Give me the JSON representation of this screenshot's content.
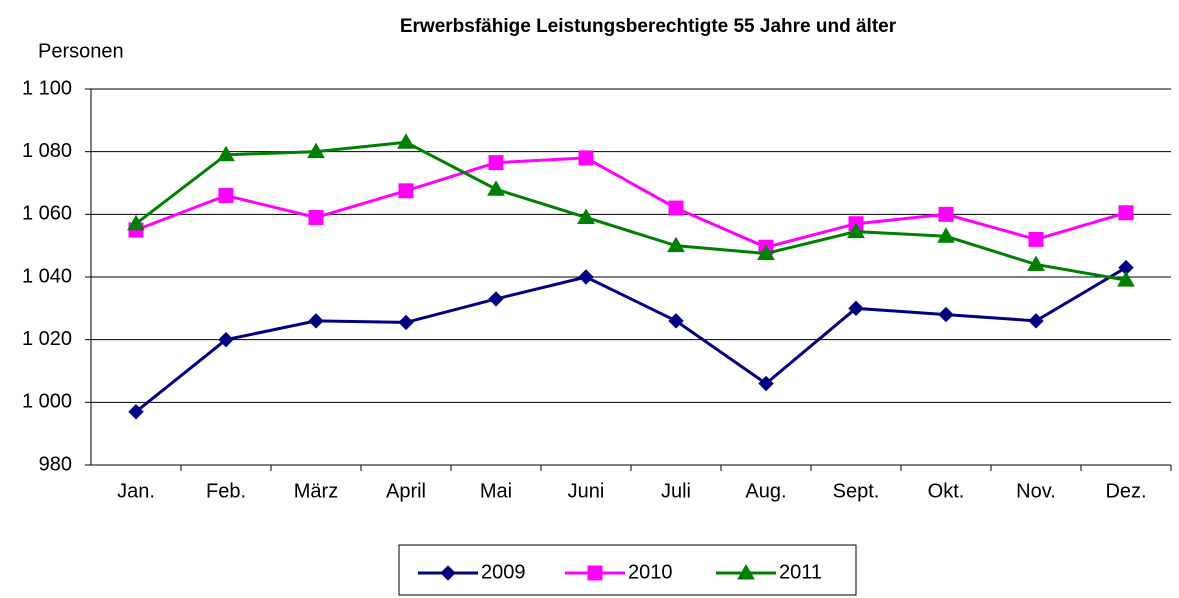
{
  "chart_data": {
    "type": "line",
    "title": "Erwerbsfähige Leistungsberechtigte 55 Jahre und älter",
    "y_label": "Personen",
    "categories": [
      "Jan.",
      "Feb.",
      "März",
      "April",
      "Mai",
      "Juni",
      "Juli",
      "Aug.",
      "Sept.",
      "Okt.",
      "Nov.",
      "Dez."
    ],
    "series": [
      {
        "name": "2009",
        "color": "#000080",
        "marker": "diamond",
        "values": [
          997,
          1020,
          1026,
          1025.5,
          1033,
          1040,
          1026,
          1006,
          1030,
          1028,
          1026,
          1043
        ]
      },
      {
        "name": "2010",
        "color": "#ff00ff",
        "marker": "square",
        "values": [
          1055,
          1066,
          1059,
          1067.5,
          1076.5,
          1078,
          1062,
          1049.5,
          1057,
          1060,
          1052,
          1060.5
        ]
      },
      {
        "name": "2011",
        "color": "#008000",
        "marker": "triangle",
        "values": [
          1057,
          1079,
          1080,
          1083,
          1068,
          1059,
          1050,
          1047.5,
          1054.5,
          1053,
          1044,
          1039
        ]
      }
    ],
    "ylim": [
      980,
      1100
    ],
    "yticks": [
      980,
      {
        "value": 1000,
        "label": "1 000"
      },
      {
        "value": 1020,
        "label": "1 020"
      },
      {
        "value": 1040,
        "label": "1 040"
      },
      {
        "value": 1060,
        "label": "1 060"
      },
      {
        "value": 1080,
        "label": "1 080"
      },
      {
        "value": 1100,
        "label": "1 100"
      }
    ],
    "grid": true,
    "legend": "bottom"
  }
}
